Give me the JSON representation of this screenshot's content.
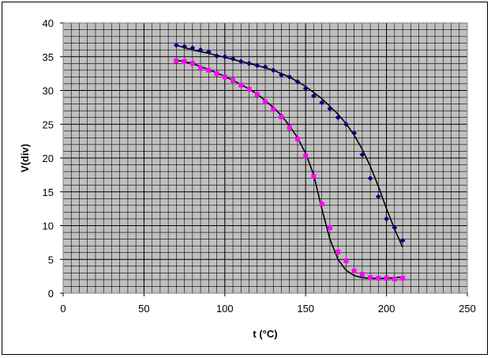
{
  "chart_data": {
    "type": "scatter",
    "title": "",
    "xlabel": "t (°C)",
    "ylabel": "V(div)",
    "xlim": [
      0,
      250
    ],
    "ylim": [
      0,
      40
    ],
    "x_ticks": [
      0,
      50,
      100,
      150,
      200,
      250
    ],
    "y_ticks": [
      0,
      5,
      10,
      15,
      20,
      25,
      30,
      35,
      40
    ],
    "x_tick_labels": [
      "0",
      "50",
      "100",
      "150",
      "200",
      "250"
    ],
    "y_tick_labels": [
      "0",
      "5",
      "10",
      "15",
      "20",
      "25",
      "30",
      "35",
      "40"
    ],
    "grid": true,
    "minor_grid_step_x": 5,
    "minor_grid_step_y": 1,
    "legend": "none",
    "background_color": "#c0c0c0",
    "grid_color": "#000000",
    "series": [
      {
        "marker": "diamond",
        "color": "#000080",
        "x": [
          70,
          75,
          80,
          85,
          90,
          95,
          100,
          105,
          110,
          115,
          120,
          125,
          130,
          135,
          140,
          145,
          150,
          155,
          160,
          165,
          170,
          175,
          180,
          185,
          190,
          195,
          200,
          205,
          210
        ],
        "y": [
          36.7,
          36.5,
          36.3,
          36.0,
          35.7,
          35.1,
          35.0,
          34.7,
          34.3,
          34.0,
          33.7,
          33.5,
          33.0,
          32.3,
          32.0,
          31.3,
          30.3,
          29.2,
          28.2,
          27.3,
          26.0,
          25.0,
          23.7,
          20.5,
          17.0,
          14.3,
          11.0,
          9.7,
          7.8
        ],
        "trendline_color": "#000000",
        "trendline": {
          "x": [
            70,
            80,
            90,
            100,
            110,
            120,
            130,
            140,
            150,
            160,
            170,
            175,
            180,
            185,
            190,
            195,
            200,
            205,
            210
          ],
          "y": [
            36.7,
            36.0,
            35.5,
            34.9,
            34.3,
            33.7,
            33.0,
            32.0,
            30.6,
            28.8,
            26.5,
            25.1,
            23.4,
            21.3,
            18.8,
            15.8,
            12.5,
            9.5,
            6.8
          ]
        }
      },
      {
        "marker": "square",
        "color": "#ff00ff",
        "x": [
          70,
          75,
          80,
          85,
          90,
          95,
          100,
          105,
          110,
          115,
          120,
          125,
          130,
          135,
          140,
          145,
          150,
          155,
          160,
          165,
          170,
          175,
          180,
          185,
          190,
          195,
          200,
          205,
          210
        ],
        "y": [
          34.4,
          34.3,
          34.0,
          33.3,
          33.0,
          32.5,
          32.0,
          31.5,
          30.8,
          30.2,
          29.4,
          28.3,
          27.2,
          26.1,
          24.5,
          22.8,
          20.3,
          17.3,
          13.2,
          9.7,
          6.1,
          4.8,
          3.3,
          2.8,
          2.3,
          2.2,
          2.2,
          2.1,
          2.2
        ],
        "trendline_color": "#000000",
        "trendline": {
          "x": [
            70,
            80,
            90,
            100,
            110,
            120,
            130,
            135,
            140,
            145,
            150,
            155,
            160,
            165,
            170,
            175,
            180,
            185,
            190,
            195,
            200,
            205,
            210
          ],
          "y": [
            34.5,
            34.0,
            33.1,
            32.1,
            30.9,
            29.5,
            27.5,
            26.3,
            24.8,
            23.0,
            20.7,
            17.5,
            12.5,
            8.0,
            5.0,
            3.4,
            2.6,
            2.3,
            2.2,
            2.2,
            2.2,
            2.3,
            2.4
          ]
        }
      }
    ]
  }
}
